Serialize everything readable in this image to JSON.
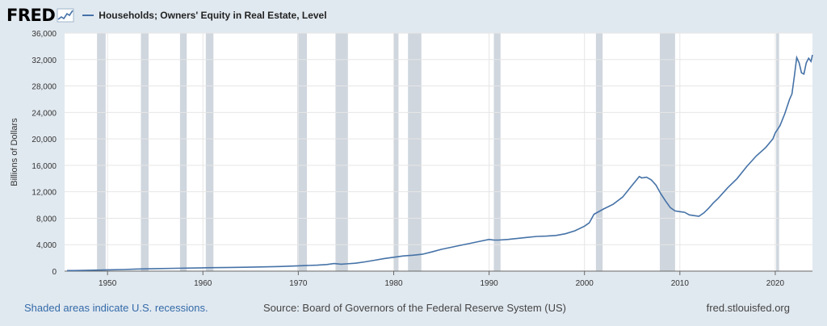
{
  "logo": {
    "text": "FRED"
  },
  "colors": {
    "series": "#4572a7",
    "recession": "#cfd6de",
    "plot_bg": "#ffffff",
    "page_bg": "#e1e9f0",
    "footer_link": "#336aa8"
  },
  "footer": {
    "note": "Shaded areas indicate U.S. recessions.",
    "source": "Source: Board of Governors of the Federal Reserve System (US)",
    "site": "fred.stlouisfed.org"
  },
  "chart_data": {
    "type": "line",
    "title": "",
    "xlabel": "",
    "ylabel": "Billions of Dollars",
    "xlim": [
      1945.5,
      2023.9
    ],
    "ylim": [
      0,
      36000
    ],
    "grid": true,
    "legend": "top-left",
    "yticks": [
      0,
      4000,
      8000,
      12000,
      16000,
      20000,
      24000,
      28000,
      32000,
      36000
    ],
    "ytick_labels": [
      "0",
      "4,000",
      "8,000",
      "12,000",
      "16,000",
      "20,000",
      "24,000",
      "28,000",
      "32,000",
      "36,000"
    ],
    "xticks": [
      1950,
      1960,
      1970,
      1980,
      1990,
      2000,
      2010,
      2020
    ],
    "xtick_labels": [
      "1950",
      "1960",
      "1970",
      "1980",
      "1990",
      "2000",
      "2010",
      "2020"
    ],
    "recessions": [
      [
        1948.9,
        1949.8
      ],
      [
        1953.5,
        1954.3
      ],
      [
        1957.6,
        1958.3
      ],
      [
        1960.3,
        1961.1
      ],
      [
        1969.9,
        1970.9
      ],
      [
        1973.9,
        1975.2
      ],
      [
        1980.0,
        1980.5
      ],
      [
        1981.5,
        1982.9
      ],
      [
        1990.5,
        1991.2
      ],
      [
        2001.2,
        2001.9
      ],
      [
        2007.9,
        2009.5
      ],
      [
        2020.1,
        2020.4
      ]
    ],
    "series": [
      {
        "name": "Households; Owners' Equity in Real Estate, Level",
        "x": [
          1945.75,
          1946.5,
          1951.75,
          1953,
          1955,
          1957,
          1960,
          1963,
          1965,
          1968,
          1970,
          1972,
          1973,
          1973.75,
          1974.5,
          1975,
          1976,
          1977,
          1978,
          1979,
          1980,
          1981,
          1982,
          1983,
          1984,
          1985,
          1986,
          1987,
          1988,
          1989,
          1990,
          1990.5,
          1991,
          1992,
          1993,
          1994,
          1995,
          1996,
          1997,
          1998,
          1999,
          2000,
          2000.5,
          2001,
          2002,
          2003,
          2004,
          2005,
          2005.75,
          2006,
          2006.5,
          2007,
          2007.5,
          2008,
          2008.5,
          2009,
          2009.5,
          2010,
          2010.5,
          2011,
          2011.5,
          2012,
          2012.5,
          2013,
          2013.5,
          2014,
          2015,
          2016,
          2017,
          2018,
          2019,
          2019.75,
          2020,
          2020.5,
          2021,
          2021.5,
          2021.75,
          2022,
          2022.25,
          2022.5,
          2022.75,
          2023,
          2023.25,
          2023.5,
          2023.75,
          2023.9
        ],
        "values": [
          80,
          80,
          250,
          320,
          380,
          430,
          500,
          560,
          600,
          700,
          800,
          900,
          1000,
          1150,
          1050,
          1100,
          1200,
          1400,
          1650,
          1900,
          2100,
          2300,
          2400,
          2550,
          2900,
          3300,
          3600,
          3900,
          4200,
          4500,
          4800,
          4700,
          4700,
          4800,
          4950,
          5100,
          5250,
          5300,
          5400,
          5650,
          6100,
          6800,
          7300,
          8600,
          9400,
          10100,
          11200,
          13000,
          14300,
          14100,
          14200,
          13800,
          13000,
          11700,
          10600,
          9600,
          9100,
          9000,
          8900,
          8500,
          8400,
          8300,
          8800,
          9500,
          10300,
          11000,
          12600,
          14000,
          15800,
          17400,
          18700,
          20000,
          20900,
          22000,
          23800,
          26000,
          26800,
          29500,
          32300,
          31500,
          30000,
          29800,
          31500,
          32200,
          31700,
          32700
        ]
      }
    ]
  }
}
